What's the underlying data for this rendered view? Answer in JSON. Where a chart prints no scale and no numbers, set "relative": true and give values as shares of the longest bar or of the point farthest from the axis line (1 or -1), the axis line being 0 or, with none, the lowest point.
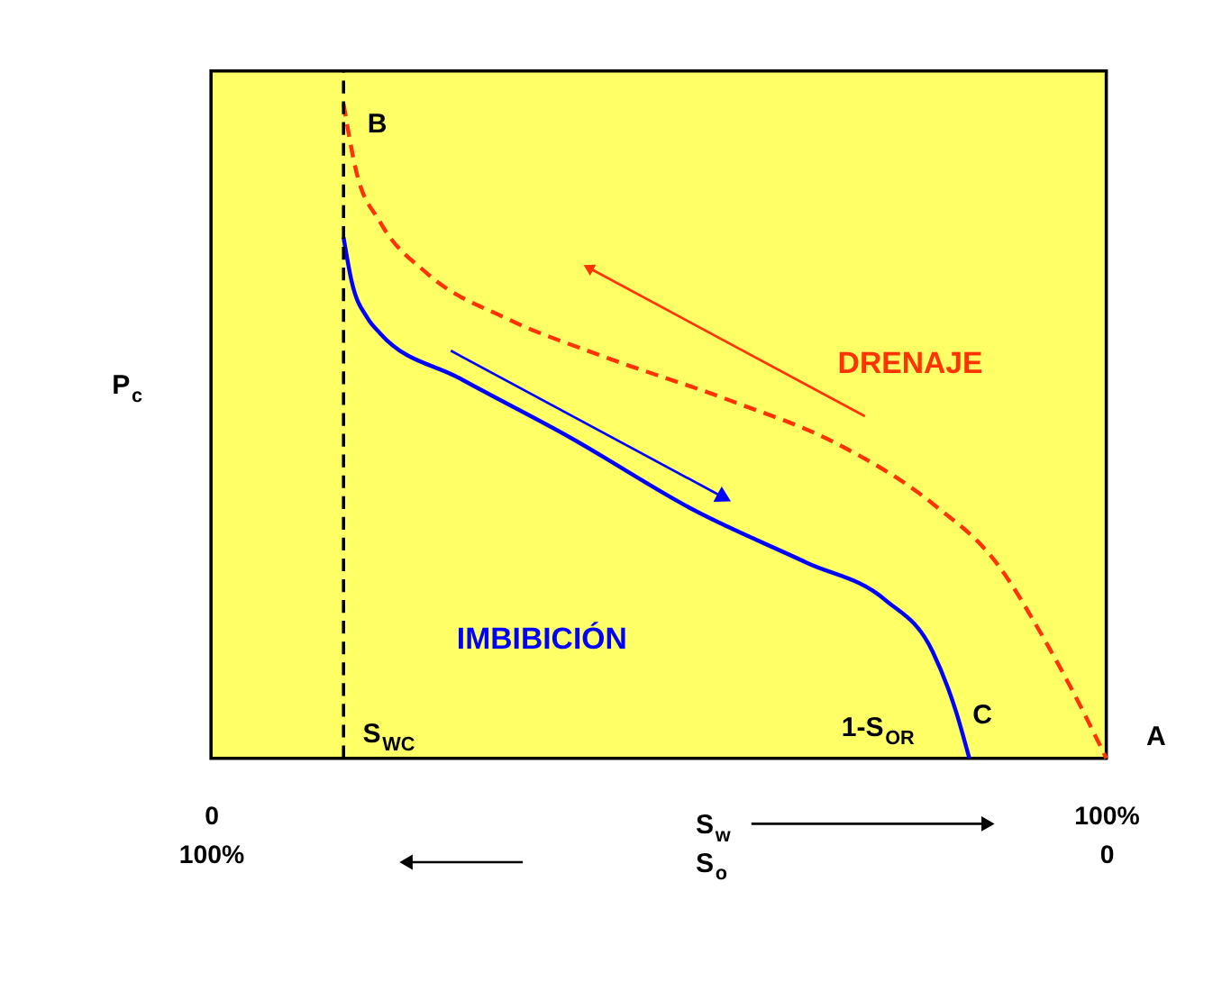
{
  "chart_data": {
    "type": "line",
    "relative": true,
    "xlabel": "S$_{w}$",
    "x2label": "S$_{o}$",
    "ylabel": "P$_{c}$",
    "xlim": [
      0,
      100
    ],
    "xticks": [
      {
        "value": 0,
        "label": "0"
      },
      {
        "value": 100,
        "label": "100%"
      }
    ],
    "x2lim": [
      100,
      0
    ],
    "x2ticks": [
      {
        "value": 100,
        "label": "100%"
      },
      {
        "value": 0,
        "label": "0"
      }
    ],
    "series": [
      {
        "name": "DRENAJE",
        "color": "#ff3300",
        "line_style": "dashed",
        "x": [
          14.8,
          16.2,
          18.9,
          24.2,
          33.0,
          43.6,
          57.7,
          70.0,
          80.6,
          87.7,
          92.9,
          97.4,
          100
        ],
        "values": [
          1,
          0.898,
          0.819,
          0.74,
          0.672,
          0.615,
          0.548,
          0.48,
          0.389,
          0.299,
          0.186,
          0.072,
          0
        ]
      },
      {
        "name": "IMBIBICIÓN",
        "color": "#0000ff",
        "line_style": "solid",
        "x": [
          14.8,
          15.7,
          17.5,
          18.9,
          27.7,
          40.0,
          54.1,
          66.5,
          75.3,
          80.6,
          83.2,
          84.7
        ],
        "values": [
          0.796,
          0.729,
          0.672,
          0.649,
          0.581,
          0.491,
          0.378,
          0.299,
          0.242,
          0.163,
          0.072,
          0
        ]
      }
    ],
    "ref_lines": [
      {
        "axis": "x",
        "value": 14.8,
        "label": "S$_{WC}$",
        "color": "#000000",
        "line_style": "dashed"
      }
    ],
    "annotations": [
      {
        "text": "B",
        "x": 14.8,
        "y": 1
      },
      {
        "text": "C",
        "x": 84.7,
        "y": 0
      },
      {
        "text": "A",
        "x": 100,
        "y": 0
      },
      {
        "text": "1-S$_{OR}$",
        "x": 84.7,
        "y": 0
      }
    ],
    "marker": "none",
    "grid": false
  }
}
